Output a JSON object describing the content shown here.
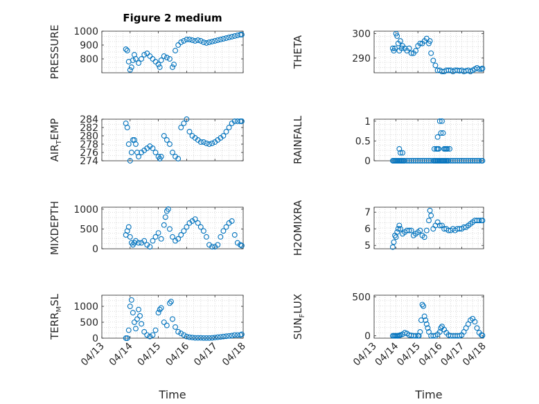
{
  "figure": {
    "title": "Figure 2 medium"
  },
  "chart_data": [
    {
      "type": "scatter",
      "title": "Figure 2 medium",
      "ylabel_main": "PRESSURE",
      "ylabel_sub": "",
      "ylim": [
        700,
        1000
      ],
      "yticks": [
        800,
        900,
        1000
      ],
      "ytick_labels": [
        "800",
        "900",
        "1000"
      ],
      "xlim": [
        0,
        5
      ],
      "xticks": [
        0,
        1,
        2,
        3,
        4,
        5
      ],
      "xtick_labels": [
        "04/13",
        "04/14",
        "04/15",
        "04/16",
        "04/17",
        "04/18"
      ],
      "xlabel": "",
      "grid": true,
      "marker": "circle",
      "x": [
        0.85,
        0.9,
        0.95,
        1.0,
        1.05,
        1.1,
        1.15,
        1.2,
        1.3,
        1.4,
        1.5,
        1.6,
        1.7,
        1.8,
        1.9,
        2.0,
        2.05,
        2.1,
        2.2,
        2.3,
        2.4,
        2.5,
        2.55,
        2.6,
        2.7,
        2.8,
        2.9,
        3.0,
        3.1,
        3.2,
        3.3,
        3.4,
        3.5,
        3.6,
        3.7,
        3.8,
        3.9,
        4.0,
        4.1,
        4.2,
        4.3,
        4.4,
        4.5,
        4.6,
        4.7,
        4.8,
        4.9,
        4.95
      ],
      "y": [
        870,
        860,
        780,
        720,
        740,
        790,
        830,
        800,
        770,
        800,
        830,
        840,
        820,
        800,
        780,
        760,
        740,
        790,
        820,
        810,
        800,
        740,
        760,
        860,
        900,
        920,
        930,
        940,
        940,
        935,
        930,
        935,
        930,
        920,
        915,
        920,
        925,
        930,
        935,
        940,
        945,
        950,
        955,
        960,
        965,
        970,
        975,
        975
      ]
    },
    {
      "type": "scatter",
      "title": "",
      "ylabel_main": "THETA",
      "ylabel_sub": "",
      "ylim": [
        284,
        301
      ],
      "yticks": [
        290,
        300
      ],
      "ytick_labels": [
        "290",
        "300"
      ],
      "xlim": [
        0,
        5
      ],
      "xticks": [
        0,
        1,
        2,
        3,
        4,
        5
      ],
      "xtick_labels": [
        "04/13",
        "04/14",
        "04/15",
        "04/16",
        "04/17",
        "04/18"
      ],
      "xlabel": "",
      "grid": true,
      "marker": "circle",
      "x": [
        0.85,
        0.9,
        0.95,
        1.0,
        1.05,
        1.1,
        1.15,
        1.2,
        1.25,
        1.3,
        1.4,
        1.5,
        1.6,
        1.7,
        1.8,
        1.9,
        2.0,
        2.1,
        2.2,
        2.3,
        2.4,
        2.5,
        2.55,
        2.6,
        2.7,
        2.8,
        2.9,
        3.0,
        3.1,
        3.2,
        3.3,
        3.4,
        3.5,
        3.6,
        3.7,
        3.8,
        3.9,
        4.0,
        4.1,
        4.2,
        4.3,
        4.4,
        4.5,
        4.6,
        4.7,
        4.8,
        4.9,
        4.95
      ],
      "y": [
        294,
        293,
        294,
        300,
        299,
        296,
        293,
        297,
        294,
        295,
        294,
        293,
        294,
        292,
        292,
        293,
        295,
        296,
        296,
        297,
        298,
        296,
        297,
        292,
        289,
        287,
        285,
        285,
        284.5,
        284.5,
        285,
        285,
        285,
        284.5,
        285,
        285,
        284.8,
        285,
        284.5,
        284.8,
        285,
        284.5,
        285,
        285.5,
        286,
        285.5,
        285.5,
        285.8
      ]
    },
    {
      "type": "scatter",
      "title": "",
      "ylabel_main": "AIR",
      "ylabel_sub": "T",
      "ylabel_tail": "EMP",
      "ylim": [
        274,
        284
      ],
      "yticks": [
        274,
        276,
        278,
        280,
        282,
        284
      ],
      "ytick_labels": [
        "274",
        "276",
        "278",
        "280",
        "282",
        "284"
      ],
      "xlim": [
        0,
        5
      ],
      "xticks": [
        0,
        1,
        2,
        3,
        4,
        5
      ],
      "xtick_labels": [
        "04/13",
        "04/14",
        "04/15",
        "04/16",
        "04/17",
        "04/18"
      ],
      "xlabel": "",
      "grid": true,
      "marker": "circle",
      "x": [
        0.85,
        0.9,
        0.95,
        1.0,
        1.05,
        1.1,
        1.15,
        1.2,
        1.25,
        1.3,
        1.4,
        1.5,
        1.6,
        1.7,
        1.8,
        1.9,
        2.0,
        2.05,
        2.1,
        2.2,
        2.3,
        2.4,
        2.5,
        2.6,
        2.7,
        2.8,
        2.9,
        3.0,
        3.1,
        3.2,
        3.3,
        3.4,
        3.5,
        3.6,
        3.7,
        3.8,
        3.9,
        4.0,
        4.1,
        4.2,
        4.3,
        4.4,
        4.5,
        4.6,
        4.7,
        4.8,
        4.9,
        4.95
      ],
      "y": [
        283,
        282,
        278,
        274,
        276,
        279,
        279,
        278,
        276,
        275,
        276,
        276.5,
        277,
        277.5,
        277,
        276,
        275,
        274.5,
        275,
        280,
        279,
        278,
        276,
        275,
        274.5,
        282,
        283,
        284,
        281,
        280,
        279.5,
        279,
        278.5,
        278.5,
        278.2,
        278,
        278.2,
        278.5,
        279,
        279.5,
        280,
        281,
        282,
        283,
        283.5,
        283.5,
        283.5,
        283.5
      ]
    },
    {
      "type": "scatter",
      "title": "",
      "ylabel_main": "RAINFALL",
      "ylabel_sub": "",
      "ylim": [
        0,
        1.05
      ],
      "yticks": [
        0,
        0.5,
        1
      ],
      "ytick_labels": [
        "0",
        "0.5",
        "1"
      ],
      "xlim": [
        0,
        5
      ],
      "xticks": [
        0,
        1,
        2,
        3,
        4,
        5
      ],
      "xtick_labels": [
        "04/13",
        "04/14",
        "04/15",
        "04/16",
        "04/17",
        "04/18"
      ],
      "xlabel": "",
      "grid": true,
      "marker": "circle",
      "x": [
        0.85,
        0.9,
        0.95,
        1.0,
        1.05,
        1.1,
        1.15,
        1.2,
        1.25,
        1.3,
        1.35,
        1.4,
        1.5,
        1.6,
        1.7,
        1.8,
        1.9,
        2.0,
        2.1,
        2.2,
        2.3,
        2.4,
        2.5,
        2.6,
        2.7,
        2.75,
        2.8,
        2.85,
        2.9,
        2.95,
        3.0,
        3.05,
        3.1,
        3.15,
        3.2,
        3.25,
        3.3,
        3.35,
        3.4,
        3.5,
        3.6,
        3.7,
        3.8,
        3.9,
        4.0,
        4.1,
        4.2,
        4.3,
        4.4,
        4.5,
        4.6,
        4.7,
        4.8,
        4.9,
        4.95,
        1.15,
        1.2,
        1.3,
        2.75,
        2.85,
        2.9,
        2.9,
        2.95,
        3.0,
        3.05,
        3.1,
        3.15,
        3.2,
        3.25,
        3.3,
        3.35,
        3.45
      ],
      "y": [
        0,
        0,
        0,
        0,
        0,
        0,
        0,
        0,
        0,
        0,
        0,
        0,
        0,
        0,
        0,
        0,
        0,
        0,
        0,
        0,
        0,
        0,
        0,
        0,
        0,
        0,
        0,
        0,
        0,
        0,
        0,
        0,
        0,
        0,
        0,
        0,
        0,
        0,
        0,
        0,
        0,
        0,
        0,
        0,
        0,
        0,
        0,
        0,
        0,
        0,
        0,
        0,
        0,
        0,
        0,
        0.3,
        0.2,
        0.2,
        0.3,
        0.3,
        0.6,
        0.3,
        0.3,
        1.0,
        0.7,
        1.0,
        0.7,
        0.3,
        0.3,
        0.3,
        0.3,
        0.3
      ]
    },
    {
      "type": "scatter",
      "title": "",
      "ylabel_main": "MIXDEPTH",
      "ylabel_sub": "",
      "ylim": [
        0,
        1050
      ],
      "yticks": [
        0,
        500,
        1000
      ],
      "ytick_labels": [
        "0",
        "500",
        "1000"
      ],
      "xlim": [
        0,
        5
      ],
      "xticks": [
        0,
        1,
        2,
        3,
        4,
        5
      ],
      "xtick_labels": [
        "04/13",
        "04/14",
        "04/15",
        "04/16",
        "04/17",
        "04/18"
      ],
      "xlabel": "",
      "grid": true,
      "marker": "circle",
      "x": [
        0.85,
        0.9,
        0.95,
        1.0,
        1.05,
        1.1,
        1.15,
        1.2,
        1.3,
        1.4,
        1.5,
        1.6,
        1.7,
        1.8,
        1.9,
        2.0,
        2.1,
        2.2,
        2.25,
        2.3,
        2.35,
        2.4,
        2.5,
        2.6,
        2.7,
        2.8,
        2.9,
        3.0,
        3.1,
        3.2,
        3.3,
        3.4,
        3.5,
        3.6,
        3.7,
        3.8,
        3.9,
        4.0,
        4.1,
        4.2,
        4.3,
        4.4,
        4.5,
        4.6,
        4.7,
        4.8,
        4.9,
        4.95
      ],
      "y": [
        350,
        450,
        550,
        300,
        150,
        100,
        150,
        200,
        150,
        150,
        200,
        100,
        50,
        200,
        300,
        400,
        250,
        600,
        800,
        950,
        1000,
        500,
        300,
        200,
        250,
        350,
        450,
        550,
        650,
        700,
        750,
        650,
        550,
        450,
        300,
        100,
        50,
        50,
        100,
        300,
        450,
        550,
        650,
        700,
        350,
        150,
        100,
        80
      ]
    },
    {
      "type": "scatter",
      "title": "",
      "ylabel_main": "H2OMIXRA",
      "ylabel_sub": "",
      "ylim": [
        4.8,
        7.3
      ],
      "yticks": [
        5,
        6,
        7
      ],
      "ytick_labels": [
        "5",
        "6",
        "7"
      ],
      "xlim": [
        0,
        5
      ],
      "xticks": [
        0,
        1,
        2,
        3,
        4,
        5
      ],
      "xtick_labels": [
        "04/13",
        "04/14",
        "04/15",
        "04/16",
        "04/17",
        "04/18"
      ],
      "xlabel": "",
      "grid": true,
      "marker": "circle",
      "x": [
        0.85,
        0.9,
        0.95,
        1.0,
        1.05,
        1.1,
        1.15,
        1.2,
        1.3,
        1.4,
        1.5,
        1.6,
        1.7,
        1.8,
        1.9,
        2.0,
        2.1,
        2.2,
        2.3,
        2.4,
        2.5,
        2.55,
        2.6,
        2.7,
        2.8,
        2.9,
        3.0,
        3.1,
        3.2,
        3.3,
        3.4,
        3.5,
        3.6,
        3.7,
        3.8,
        3.9,
        4.0,
        4.1,
        4.2,
        4.3,
        4.4,
        4.5,
        4.6,
        4.7,
        4.8,
        4.9,
        4.95
      ],
      "y": [
        4.9,
        5.2,
        5.6,
        5.5,
        5.8,
        6.0,
        6.2,
        6.0,
        5.7,
        5.8,
        5.9,
        5.9,
        5.9,
        5.6,
        5.7,
        5.8,
        5.9,
        5.6,
        5.5,
        5.9,
        6.5,
        7.1,
        6.8,
        6.0,
        6.2,
        6.4,
        6.2,
        6.2,
        6.0,
        6.0,
        5.9,
        5.9,
        6.0,
        5.9,
        6.0,
        6.0,
        6.0,
        6.1,
        6.1,
        6.2,
        6.3,
        6.4,
        6.5,
        6.5,
        6.5,
        6.5,
        6.5
      ]
    },
    {
      "type": "scatter",
      "title": "",
      "ylabel_main": "TERR",
      "ylabel_sub": "M",
      "ylabel_tail": "SL",
      "ylim": [
        0,
        1350
      ],
      "yticks": [
        0,
        500,
        1000
      ],
      "ytick_labels": [
        "0",
        "500",
        "1000"
      ],
      "xlim": [
        0,
        5
      ],
      "xticks": [
        0,
        1,
        2,
        3,
        4,
        5
      ],
      "xtick_labels": [
        "04/13",
        "04/14",
        "04/15",
        "04/16",
        "04/17",
        "04/18"
      ],
      "xlabel": "Time",
      "grid": true,
      "marker": "circle",
      "x": [
        0.85,
        0.9,
        0.95,
        1.0,
        1.05,
        1.1,
        1.15,
        1.2,
        1.25,
        1.3,
        1.35,
        1.4,
        1.5,
        1.6,
        1.7,
        1.8,
        1.9,
        2.0,
        2.05,
        2.1,
        2.2,
        2.3,
        2.4,
        2.45,
        2.5,
        2.6,
        2.7,
        2.8,
        2.9,
        3.0,
        3.1,
        3.2,
        3.3,
        3.4,
        3.5,
        3.6,
        3.7,
        3.8,
        3.9,
        4.0,
        4.1,
        4.2,
        4.3,
        4.4,
        4.5,
        4.6,
        4.7,
        4.8,
        4.9,
        4.95
      ],
      "y": [
        0,
        0,
        250,
        1000,
        1200,
        800,
        500,
        300,
        600,
        900,
        700,
        450,
        200,
        100,
        50,
        100,
        250,
        800,
        900,
        950,
        500,
        400,
        1100,
        1150,
        600,
        350,
        200,
        150,
        100,
        50,
        30,
        20,
        10,
        10,
        10,
        5,
        5,
        5,
        10,
        20,
        30,
        40,
        50,
        60,
        70,
        80,
        100,
        100,
        100,
        120
      ]
    },
    {
      "type": "scatter",
      "title": "",
      "ylabel_main": "SUN",
      "ylabel_sub": "F",
      "ylabel_tail": "LUX",
      "ylim": [
        -30,
        520
      ],
      "yticks": [
        0,
        500
      ],
      "ytick_labels": [
        "0",
        "500"
      ],
      "xlim": [
        0,
        5
      ],
      "xticks": [
        0,
        1,
        2,
        3,
        4,
        5
      ],
      "xtick_labels": [
        "04/13",
        "04/14",
        "04/15",
        "04/16",
        "04/17",
        "04/18"
      ],
      "xlabel": "Time",
      "grid": true,
      "marker": "circle",
      "x": [
        0.85,
        0.9,
        0.95,
        1.0,
        1.05,
        1.1,
        1.15,
        1.2,
        1.3,
        1.4,
        1.5,
        1.6,
        1.7,
        1.8,
        1.9,
        2.0,
        2.05,
        2.1,
        2.15,
        2.2,
        2.25,
        2.3,
        2.35,
        2.4,
        2.45,
        2.5,
        2.6,
        2.7,
        2.8,
        2.9,
        3.0,
        3.05,
        3.1,
        3.2,
        3.3,
        3.4,
        3.5,
        3.6,
        3.7,
        3.8,
        3.9,
        4.0,
        4.1,
        4.2,
        4.3,
        4.4,
        4.5,
        4.6,
        4.7,
        4.8,
        4.9,
        4.95
      ],
      "y": [
        0,
        0,
        0,
        0,
        0,
        0,
        5,
        10,
        20,
        40,
        30,
        10,
        5,
        0,
        0,
        0,
        0,
        50,
        200,
        400,
        380,
        250,
        200,
        150,
        100,
        50,
        0,
        0,
        0,
        20,
        50,
        100,
        120,
        80,
        40,
        10,
        0,
        0,
        0,
        0,
        0,
        10,
        50,
        100,
        150,
        200,
        220,
        180,
        100,
        40,
        10,
        5
      ]
    }
  ]
}
